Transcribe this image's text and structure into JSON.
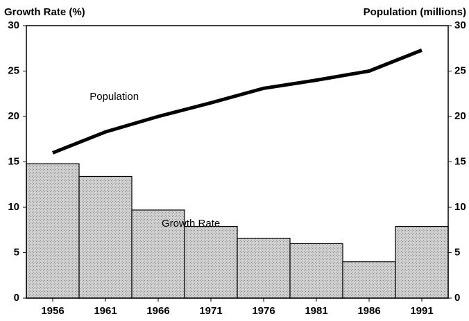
{
  "chart_data": {
    "type": "bar",
    "ylabel": "Growth Rate (%)",
    "y2label": "Population (millions)",
    "categories": [
      "1956",
      "1961",
      "1966",
      "1971",
      "1976",
      "1981",
      "1986",
      "1991"
    ],
    "series": [
      {
        "name": "Growth Rate",
        "type": "bar",
        "color": "#c4c4c4",
        "values": [
          14.8,
          13.4,
          9.7,
          7.9,
          6.6,
          6.0,
          4.0,
          7.9
        ]
      },
      {
        "name": "Population",
        "type": "line",
        "axis": "y2",
        "color": "#000000",
        "values": [
          16.0,
          18.3,
          20.0,
          21.5,
          23.1,
          24.0,
          25.0,
          27.3
        ]
      }
    ],
    "ylim": [
      0,
      30
    ],
    "yticks": [
      0,
      5,
      10,
      15,
      20,
      25,
      30
    ],
    "y2lim": [
      0,
      30
    ],
    "y2ticks": [
      0,
      5,
      10,
      15,
      20,
      25,
      30
    ],
    "grid": false
  }
}
